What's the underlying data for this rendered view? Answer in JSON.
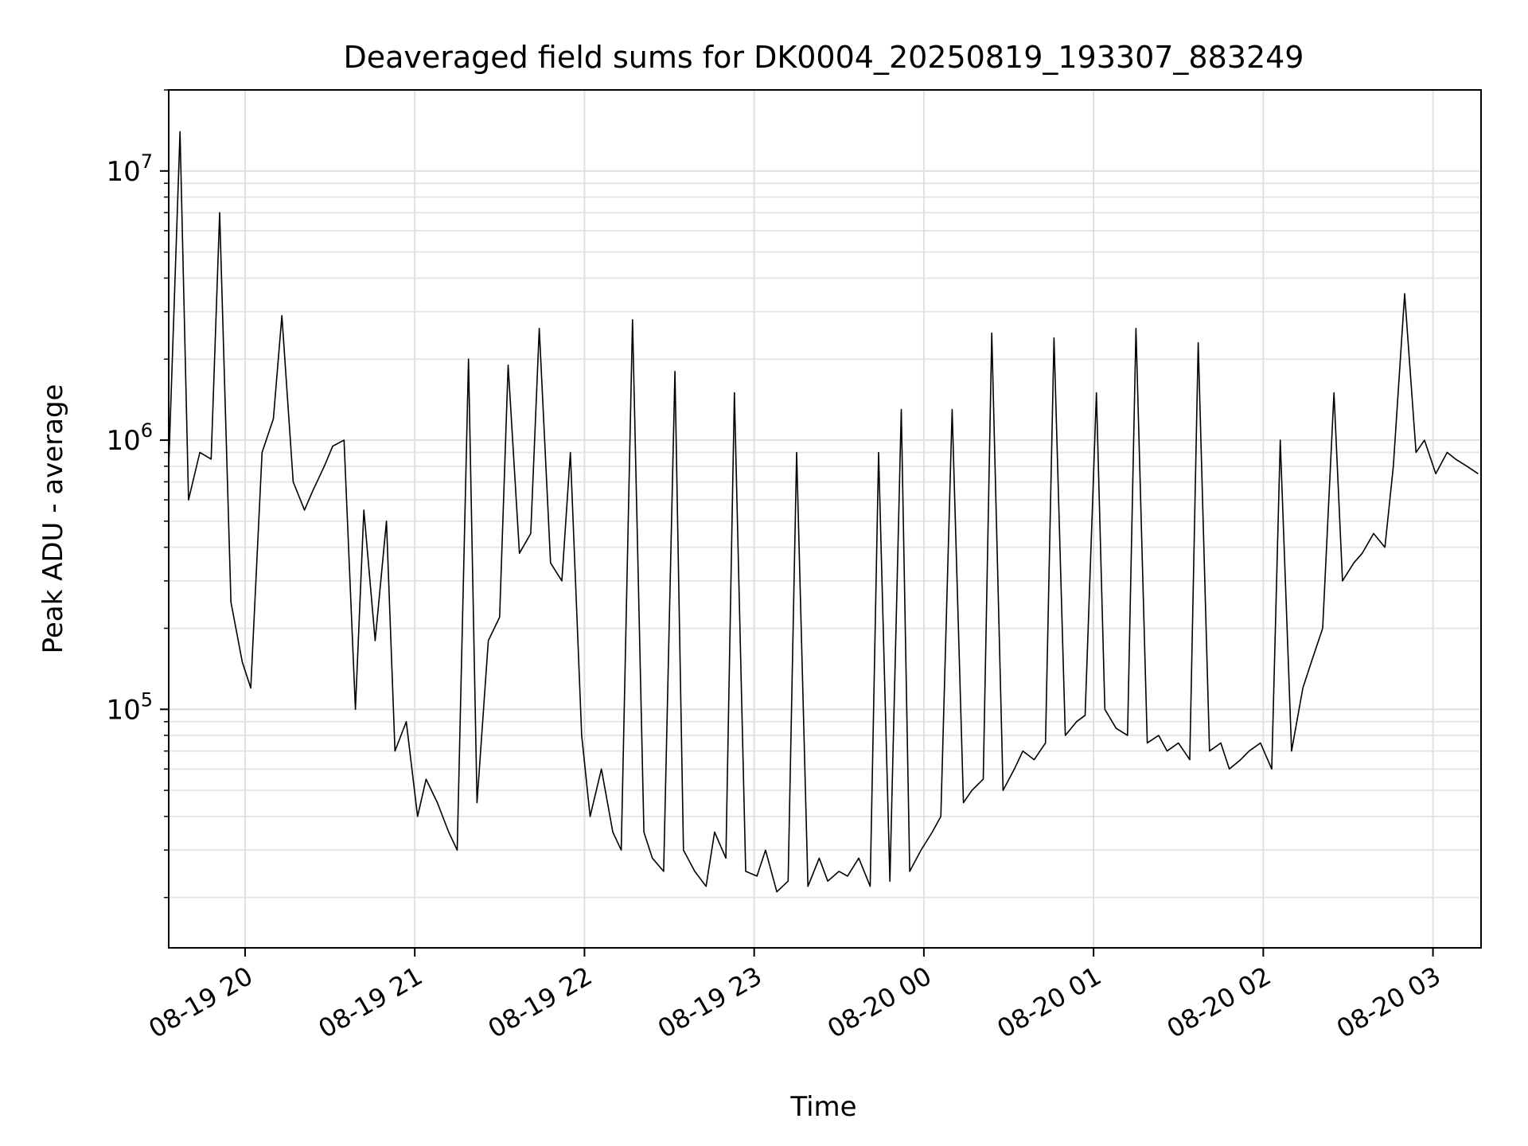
{
  "chart_data": {
    "type": "line",
    "title": "Deaveraged field sums for DK0004_20250819_193307_883249",
    "xlabel": "Time",
    "ylabel": "Peak ADU - average",
    "x_range": [
      "08-19 19:33",
      "08-20 03:17"
    ],
    "y_scale": "log",
    "ylim": [
      13000,
      20000000
    ],
    "grid": "on, including minor lines on the y axis",
    "x_ticks": [
      {
        "value": "08-19 20:00",
        "label": "08-19 20"
      },
      {
        "value": "08-19 21:00",
        "label": "08-19 21"
      },
      {
        "value": "08-19 22:00",
        "label": "08-19 22"
      },
      {
        "value": "08-19 23:00",
        "label": "08-19 23"
      },
      {
        "value": "08-20 00:00",
        "label": "08-20 00"
      },
      {
        "value": "08-20 01:00",
        "label": "08-20 01"
      },
      {
        "value": "08-20 02:00",
        "label": "08-20 02"
      },
      {
        "value": "08-20 03:00",
        "label": "08-20 03"
      }
    ],
    "y_ticks": [
      {
        "value": 100000,
        "base": "10",
        "exp": "5"
      },
      {
        "value": 1000000,
        "base": "10",
        "exp": "6"
      },
      {
        "value": 10000000,
        "base": "10",
        "exp": "7"
      }
    ],
    "series": [
      {
        "color": "#000000",
        "x": [
          "08-19 19:33",
          "08-19 19:37",
          "08-19 19:40",
          "08-19 19:44",
          "08-19 19:48",
          "08-19 19:51",
          "08-19 19:55",
          "08-19 19:59",
          "08-19 20:02",
          "08-19 20:06",
          "08-19 20:10",
          "08-19 20:13",
          "08-19 20:17",
          "08-19 20:21",
          "08-19 20:24",
          "08-19 20:28",
          "08-19 20:31",
          "08-19 20:35",
          "08-19 20:39",
          "08-19 20:42",
          "08-19 20:46",
          "08-19 20:50",
          "08-19 20:53",
          "08-19 20:57",
          "08-19 21:01",
          "08-19 21:04",
          "08-19 21:08",
          "08-19 21:12",
          "08-19 21:15",
          "08-19 21:19",
          "08-19 21:22",
          "08-19 21:26",
          "08-19 21:30",
          "08-19 21:33",
          "08-19 21:37",
          "08-19 21:41",
          "08-19 21:44",
          "08-19 21:48",
          "08-19 21:52",
          "08-19 21:55",
          "08-19 21:59",
          "08-19 22:02",
          "08-19 22:06",
          "08-19 22:10",
          "08-19 22:13",
          "08-19 22:17",
          "08-19 22:21",
          "08-19 22:24",
          "08-19 22:28",
          "08-19 22:32",
          "08-19 22:35",
          "08-19 22:39",
          "08-19 22:43",
          "08-19 22:46",
          "08-19 22:50",
          "08-19 22:53",
          "08-19 22:57",
          "08-19 23:01",
          "08-19 23:04",
          "08-19 23:08",
          "08-19 23:12",
          "08-19 23:15",
          "08-19 23:19",
          "08-19 23:23",
          "08-19 23:26",
          "08-19 23:30",
          "08-19 23:33",
          "08-19 23:37",
          "08-19 23:41",
          "08-19 23:44",
          "08-19 23:48",
          "08-19 23:52",
          "08-19 23:55",
          "08-19 23:59",
          "08-20 00:03",
          "08-20 00:06",
          "08-20 00:10",
          "08-20 00:14",
          "08-20 00:17",
          "08-20 00:21",
          "08-20 00:24",
          "08-20 00:28",
          "08-20 00:32",
          "08-20 00:35",
          "08-20 00:39",
          "08-20 00:43",
          "08-20 00:46",
          "08-20 00:50",
          "08-20 00:54",
          "08-20 00:57",
          "08-20 01:01",
          "08-20 01:04",
          "08-20 01:08",
          "08-20 01:12",
          "08-20 01:15",
          "08-20 01:19",
          "08-20 01:23",
          "08-20 01:26",
          "08-20 01:30",
          "08-20 01:34",
          "08-20 01:37",
          "08-20 01:41",
          "08-20 01:45",
          "08-20 01:48",
          "08-20 01:52",
          "08-20 01:55",
          "08-20 01:59",
          "08-20 02:03",
          "08-20 02:06",
          "08-20 02:10",
          "08-20 02:14",
          "08-20 02:17",
          "08-20 02:21",
          "08-20 02:25",
          "08-20 02:28",
          "08-20 02:32",
          "08-20 02:35",
          "08-20 02:39",
          "08-20 02:43",
          "08-20 02:46",
          "08-20 02:50",
          "08-20 02:54",
          "08-20 02:57",
          "08-20 03:01",
          "08-20 03:05",
          "08-20 03:08",
          "08-20 03:12",
          "08-20 03:16"
        ],
        "y": [
          800000,
          14000000,
          600000,
          900000,
          850000,
          7000000,
          250000,
          150000,
          120000,
          900000,
          1200000,
          2900000,
          700000,
          550000,
          650000,
          800000,
          950000,
          1000000,
          100000,
          550000,
          180000,
          500000,
          70000,
          90000,
          40000,
          55000,
          45000,
          35000,
          30000,
          2000000,
          45000,
          180000,
          220000,
          1900000,
          380000,
          450000,
          2600000,
          350000,
          300000,
          900000,
          80000,
          40000,
          60000,
          35000,
          30000,
          2800000,
          35000,
          28000,
          25000,
          1800000,
          30000,
          25000,
          22000,
          35000,
          28000,
          1500000,
          25000,
          24000,
          30000,
          21000,
          23000,
          900000,
          22000,
          28000,
          23000,
          25000,
          24000,
          28000,
          22000,
          900000,
          23000,
          1300000,
          25000,
          30000,
          35000,
          40000,
          1300000,
          45000,
          50000,
          55000,
          2500000,
          50000,
          60000,
          70000,
          65000,
          75000,
          2400000,
          80000,
          90000,
          95000,
          1500000,
          100000,
          85000,
          80000,
          2600000,
          75000,
          80000,
          70000,
          75000,
          65000,
          2300000,
          70000,
          75000,
          60000,
          65000,
          70000,
          75000,
          60000,
          1000000,
          70000,
          120000,
          150000,
          200000,
          1500000,
          300000,
          350000,
          380000,
          450000,
          400000,
          800000,
          3500000,
          900000,
          1000000,
          750000,
          900000,
          850000,
          800000,
          750000
        ]
      }
    ]
  }
}
